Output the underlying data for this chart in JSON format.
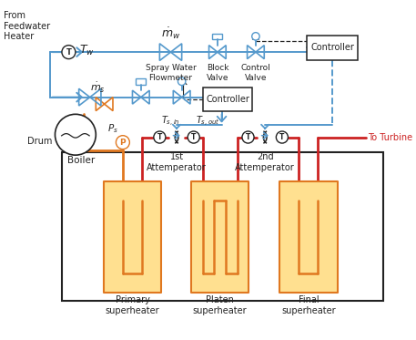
{
  "blue": "#5599cc",
  "red": "#cc2222",
  "orange": "#e07820",
  "orange_light": "#ffe090",
  "black": "#222222",
  "white": "#ffffff",
  "labels": {
    "from_feedwater": "From\nFeedwater\nHeater",
    "spray_water": "Spray Water\nFlowmeter",
    "block_valve": "Block\nValve",
    "control_valve": "Control\nValve",
    "controller_top": "Controller",
    "controller_mid": "Controller",
    "drum": "Drum",
    "boiler": "Boiler",
    "primary": "Primary\nsuperheater",
    "platen": "Platen\nsuperheater",
    "final": "Final\nsuperheater",
    "to_turbine": "To Turbine",
    "att1": "1st\nAttemperator",
    "att2": "2nd\nAttemperator",
    "Tw": "$T_w$",
    "mdotw": "$\\dot{m}_w$",
    "Ps": "$P_s$",
    "Tsin": "$T_{s,in}$",
    "Tsout": "$T_{s,out}$",
    "mdots": "$\\dot{m}_s$"
  }
}
